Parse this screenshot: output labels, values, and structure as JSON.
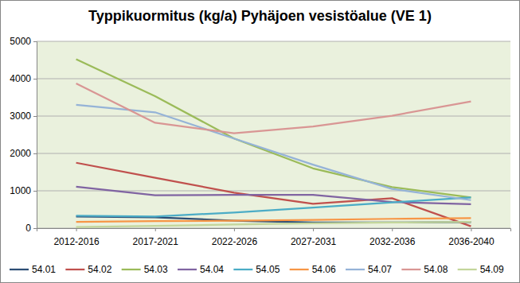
{
  "chart_data": {
    "type": "line",
    "title": "Typpikuormitus (kg/a) Pyhäjoen vesistöalue (VE 1)",
    "categories": [
      "2012-2016",
      "2017-2021",
      "2022-2026",
      "2027-2031",
      "2032-2036",
      "2036-2040"
    ],
    "series": [
      {
        "name": "54.01",
        "color": "#2c4d75",
        "values": [
          310,
          290,
          200,
          150,
          150,
          160
        ]
      },
      {
        "name": "54.02",
        "color": "#c0504d",
        "values": [
          1750,
          1350,
          950,
          650,
          800,
          50
        ]
      },
      {
        "name": "54.03",
        "color": "#9bbb59",
        "values": [
          4520,
          3530,
          2400,
          1600,
          1100,
          820
        ]
      },
      {
        "name": "54.04",
        "color": "#8064a2",
        "values": [
          1110,
          880,
          890,
          890,
          700,
          640
        ]
      },
      {
        "name": "54.05",
        "color": "#4bacc6",
        "values": [
          330,
          310,
          420,
          550,
          690,
          820
        ]
      },
      {
        "name": "54.06",
        "color": "#f79646",
        "values": [
          170,
          190,
          200,
          220,
          250,
          270
        ]
      },
      {
        "name": "54.07",
        "color": "#95b3d7",
        "values": [
          3300,
          3100,
          2400,
          1700,
          1050,
          750
        ]
      },
      {
        "name": "54.08",
        "color": "#d99694",
        "values": [
          3870,
          2820,
          2540,
          2720,
          3010,
          3390
        ]
      },
      {
        "name": "54.09",
        "color": "#c3d69b",
        "values": [
          30,
          60,
          100,
          130,
          150,
          170
        ]
      }
    ],
    "ylim": [
      0,
      5000
    ],
    "yticks": [
      0,
      1000,
      2000,
      3000,
      4000,
      5000
    ],
    "grid": true,
    "legend": "bottom"
  }
}
